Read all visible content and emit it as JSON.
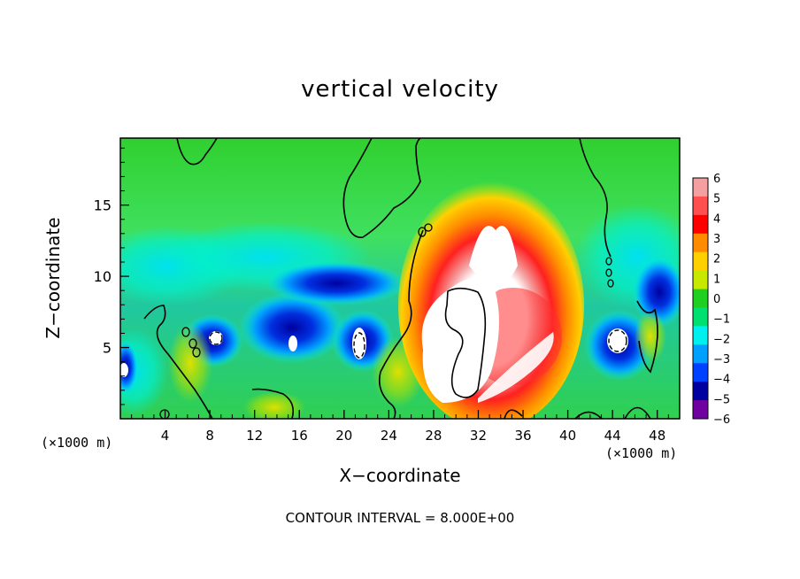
{
  "chart_data": {
    "type": "heatmap",
    "title": "vertical velocity",
    "xlabel": "X−coordinate",
    "ylabel": "Z−coordinate",
    "x_unit_left": "(×1000 m)",
    "x_unit_right": "(×1000 m)",
    "annotation": "CONTOUR INTERVAL = 8.000E+00",
    "x_ticks": [
      "4",
      "8",
      "12",
      "16",
      "20",
      "24",
      "28",
      "32",
      "36",
      "40",
      "44",
      "48"
    ],
    "y_ticks": [
      "5",
      "10",
      "15"
    ],
    "xlim": [
      0,
      50
    ],
    "ylim": [
      0,
      19.7
    ],
    "colorbar": {
      "labels": [
        "6",
        "5",
        "4",
        "3",
        "2",
        "1",
        "0",
        "−1",
        "−2",
        "−3",
        "−4",
        "−5",
        "−6"
      ],
      "range": [
        -6,
        6
      ],
      "colors": [
        "#f4a0a0",
        "#ff5050",
        "#ff0000",
        "#ff8c00",
        "#ffd000",
        "#c8e800",
        "#20d020",
        "#00e070",
        "#00f0f0",
        "#00a0ff",
        "#0040ff",
        "#0000a0",
        "#7000a0"
      ]
    },
    "features": [
      {
        "kind": "updraft",
        "x_range": [
          26,
          40
        ],
        "z_range": [
          0.5,
          16
        ],
        "max": "> 6"
      },
      {
        "kind": "downdraft",
        "x_range": [
          1,
          24
        ],
        "z_range": [
          2,
          10
        ],
        "min": "< -5"
      },
      {
        "kind": "downdraft",
        "x_range": [
          41,
          50
        ],
        "z_range": [
          2,
          10
        ],
        "min": "< -5"
      }
    ]
  }
}
